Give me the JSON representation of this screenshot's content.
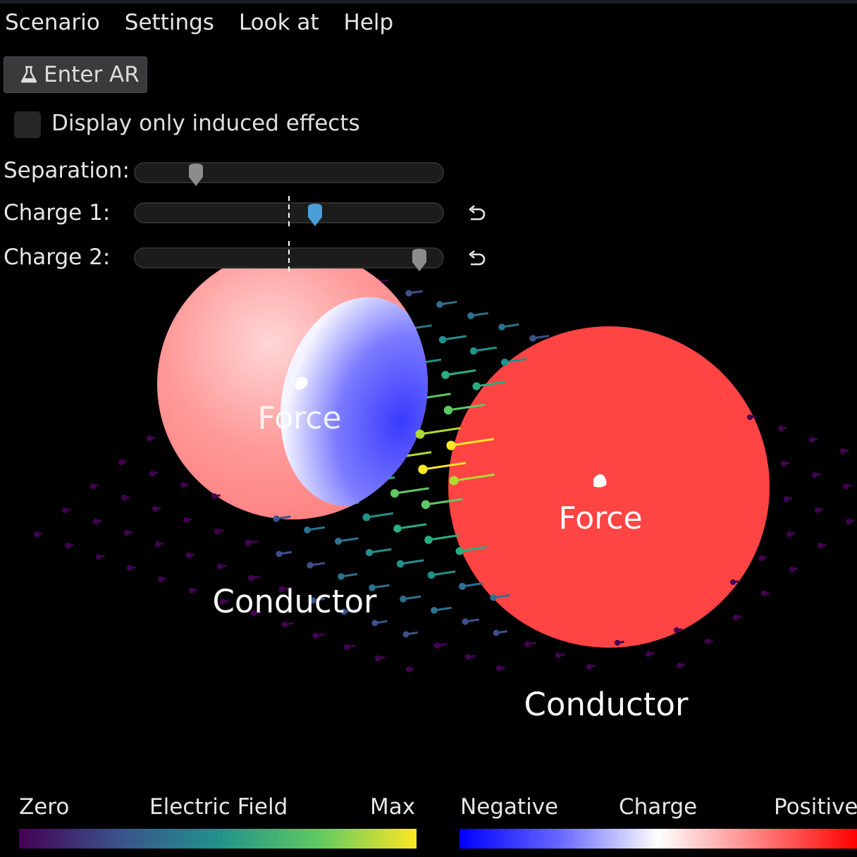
{
  "menu": [
    "Scenario",
    "Settings",
    "Look at",
    "Help"
  ],
  "ar_button": {
    "label": "Enter AR",
    "icon": "flask-icon"
  },
  "induced_toggle": {
    "label": "Display only induced effects",
    "checked": false
  },
  "sliders": {
    "separation": {
      "label": "Separation:",
      "value": 0.18
    },
    "charge1": {
      "label": "Charge 1:",
      "value": 0.59,
      "color": "#4a9fd8"
    },
    "charge2": {
      "label": "Charge 2:",
      "value": 0.95
    }
  },
  "scene": {
    "sphere1_labels": {
      "force": "Force",
      "object": "Conductor"
    },
    "sphere2_labels": {
      "force": "Force",
      "object": "Conductor"
    }
  },
  "colorbars": {
    "field": {
      "min": "Zero",
      "title": "Electric Field",
      "max": "Max"
    },
    "charge": {
      "min": "Negative",
      "title": "Charge",
      "max": "Positive"
    }
  },
  "colors": {
    "field_max": "#fde725",
    "field_zero": "#440154",
    "charge_positive": "#ff0000",
    "charge_negative": "#0000ff"
  }
}
